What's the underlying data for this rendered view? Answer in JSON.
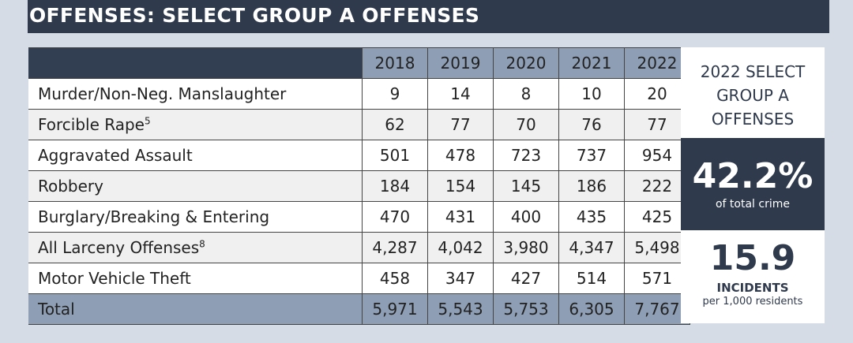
{
  "header": {
    "title": "OFFENSES: SELECT GROUP A OFFENSES"
  },
  "table": {
    "columns": [
      "2018",
      "2019",
      "2020",
      "2021",
      "2022"
    ],
    "rows": [
      {
        "label": "Murder/Non-Neg. Manslaughter",
        "values": [
          "9",
          "14",
          "8",
          "10",
          "20"
        ]
      },
      {
        "label": "Forcible Rape",
        "note": "5",
        "values": [
          "62",
          "77",
          "70",
          "76",
          "77"
        ]
      },
      {
        "label": "Aggravated Assault",
        "values": [
          "501",
          "478",
          "723",
          "737",
          "954"
        ]
      },
      {
        "label": "Robbery",
        "values": [
          "184",
          "154",
          "145",
          "186",
          "222"
        ]
      },
      {
        "label": "Burglary/Breaking & Entering",
        "values": [
          "470",
          "431",
          "400",
          "435",
          "425"
        ]
      },
      {
        "label": "All Larceny Offenses",
        "note": "8",
        "values": [
          "4,287",
          "4,042",
          "3,980",
          "4,347",
          "5,498"
        ]
      },
      {
        "label": "Motor Vehicle Theft",
        "values": [
          "458",
          "347",
          "427",
          "514",
          "571"
        ]
      }
    ],
    "total": {
      "label": "Total",
      "values": [
        "5,971",
        "5,543",
        "5,753",
        "6,305",
        "7,767"
      ]
    }
  },
  "panel": {
    "title": "2022 SELECT GROUP A OFFENSES",
    "share": "42.2%",
    "share_caption": "of total crime",
    "rate": "15.9",
    "rate_unit": "INCIDENTS",
    "rate_caption": "per 1,000 residents"
  }
}
